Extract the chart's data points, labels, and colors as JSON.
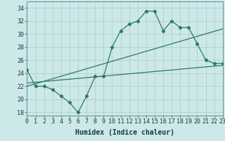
{
  "xlabel": "Humidex (Indice chaleur)",
  "x_values": [
    0,
    1,
    2,
    3,
    4,
    5,
    6,
    7,
    8,
    9,
    10,
    11,
    12,
    13,
    14,
    15,
    16,
    17,
    18,
    19,
    20,
    21,
    22,
    23
  ],
  "main_line_y": [
    24.5,
    22.0,
    22.0,
    21.5,
    20.5,
    19.5,
    18.0,
    20.5,
    23.5,
    23.5,
    28.0,
    30.5,
    31.5,
    32.0,
    33.5,
    33.5,
    30.5,
    32.0,
    31.0,
    31.0,
    28.5,
    26.0,
    25.5,
    25.5
  ],
  "trend1_y": [
    22.5,
    25.2
  ],
  "trend2_y": [
    22.0,
    30.8
  ],
  "line_color": "#2a7a6b",
  "bg_color": "#cce8e8",
  "grid_color": "#aacccc",
  "xlim": [
    0,
    23
  ],
  "ylim": [
    17.5,
    35
  ],
  "yticks": [
    18,
    20,
    22,
    24,
    26,
    28,
    30,
    32,
    34
  ],
  "xticks": [
    0,
    1,
    2,
    3,
    4,
    5,
    6,
    7,
    8,
    9,
    10,
    11,
    12,
    13,
    14,
    15,
    16,
    17,
    18,
    19,
    20,
    21,
    22,
    23
  ],
  "xlabel_fontsize": 7,
  "tick_fontsize": 6
}
